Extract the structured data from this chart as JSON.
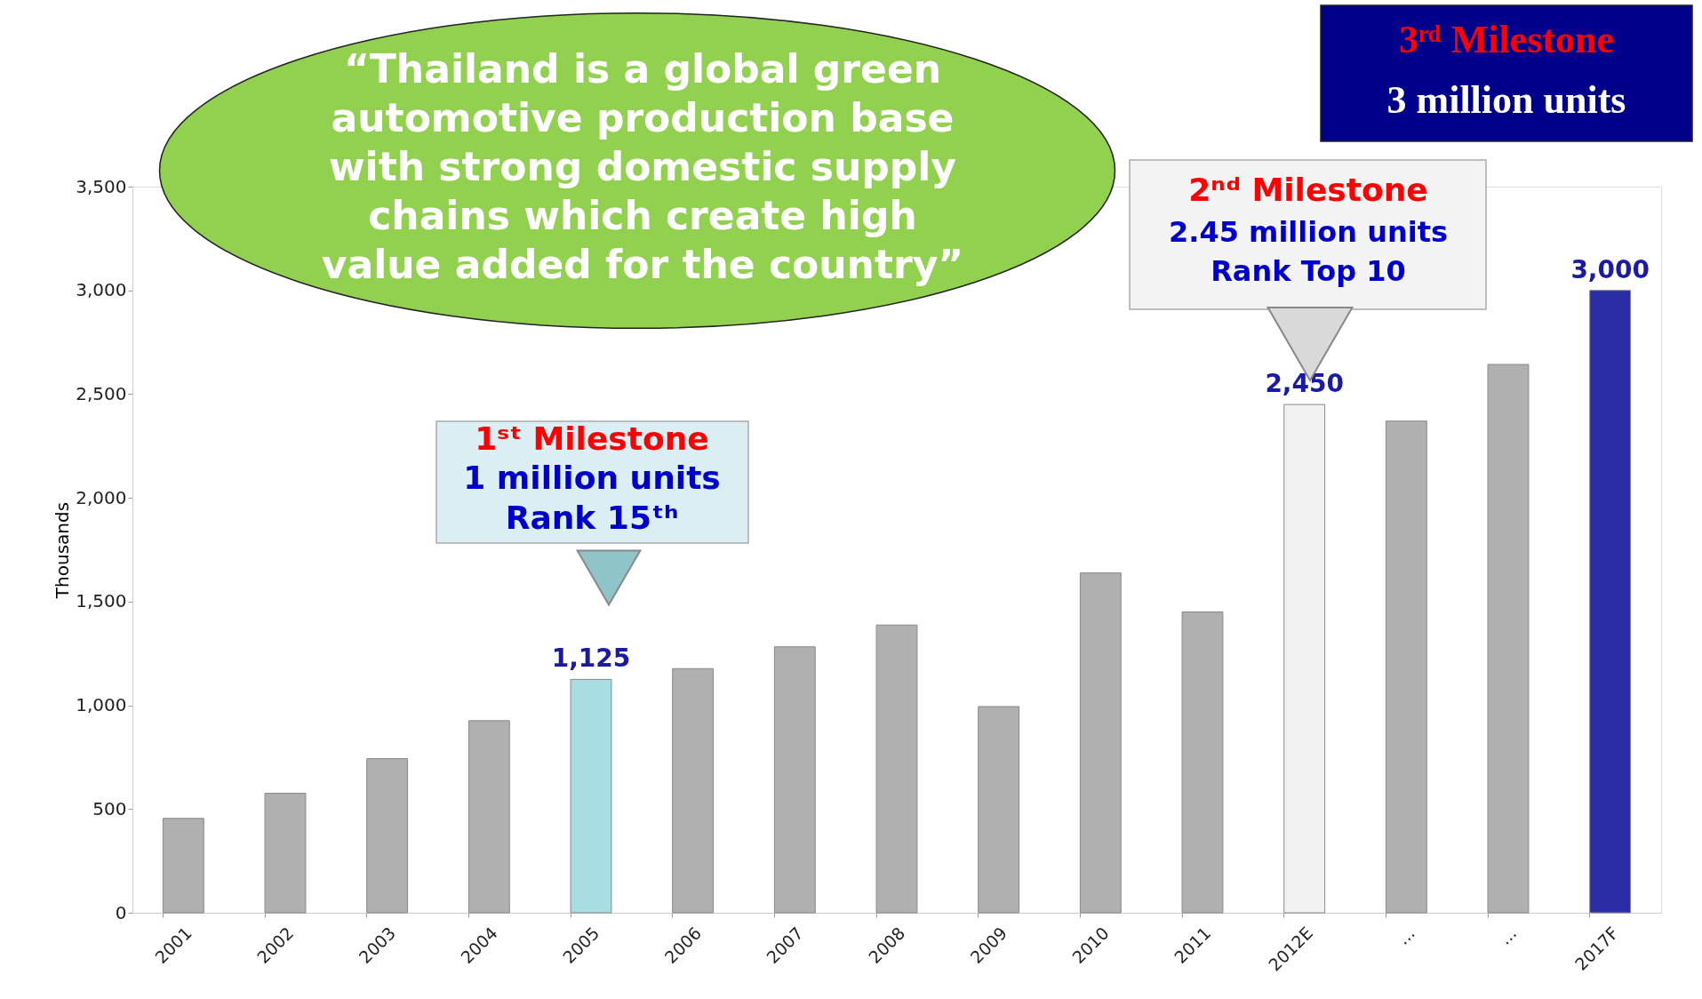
{
  "chart_data": {
    "type": "bar",
    "ylabel": "Thousands",
    "categories": [
      "2001",
      "2002",
      "2003",
      "2004",
      "2005",
      "2006",
      "2007",
      "2008",
      "2009",
      "2010",
      "2011",
      "2012E",
      "...",
      "...",
      "2017F"
    ],
    "values": [
      455,
      576,
      743,
      926,
      1125,
      1177,
      1282,
      1387,
      994,
      1638,
      1450,
      2450,
      2370,
      2643,
      3000
    ],
    "colors": [
      "#b0b0b0",
      "#b0b0b0",
      "#b0b0b0",
      "#b0b0b0",
      "#a8dde4",
      "#b0b0b0",
      "#b0b0b0",
      "#b0b0b0",
      "#b0b0b0",
      "#b0b0b0",
      "#b0b0b0",
      "#f2f2f2",
      "#b0b0b0",
      "#b0b0b0",
      "#2b2da6"
    ],
    "value_labels": [
      null,
      null,
      null,
      null,
      "1,125",
      null,
      null,
      null,
      null,
      null,
      null,
      "2,450",
      null,
      null,
      "3,000"
    ],
    "ylim": [
      0,
      3500
    ],
    "yticks": [
      0,
      500,
      {
        "value": 1000,
        "label": "1,000"
      },
      {
        "value": 1500,
        "label": "1,500"
      },
      {
        "value": 2000,
        "label": "2,000"
      },
      {
        "value": 2500,
        "label": "2,500"
      },
      {
        "value": 3000,
        "label": "3,000"
      },
      {
        "value": 3500,
        "label": "3,500"
      }
    ],
    "grid": false,
    "annotations": [
      "“Thailand is a global green\nautomotive production base\nwith strong domestic supply\nchains  which create high\nvalue added for the country”",
      "1ˢᵗ Milestone\n1 million units\nRank 15ᵗʰ",
      "2ⁿᵈ Milestone\n2.45 million units\nRank Top 10",
      "3ʳᵈ Milestone\n3 million units"
    ]
  }
}
